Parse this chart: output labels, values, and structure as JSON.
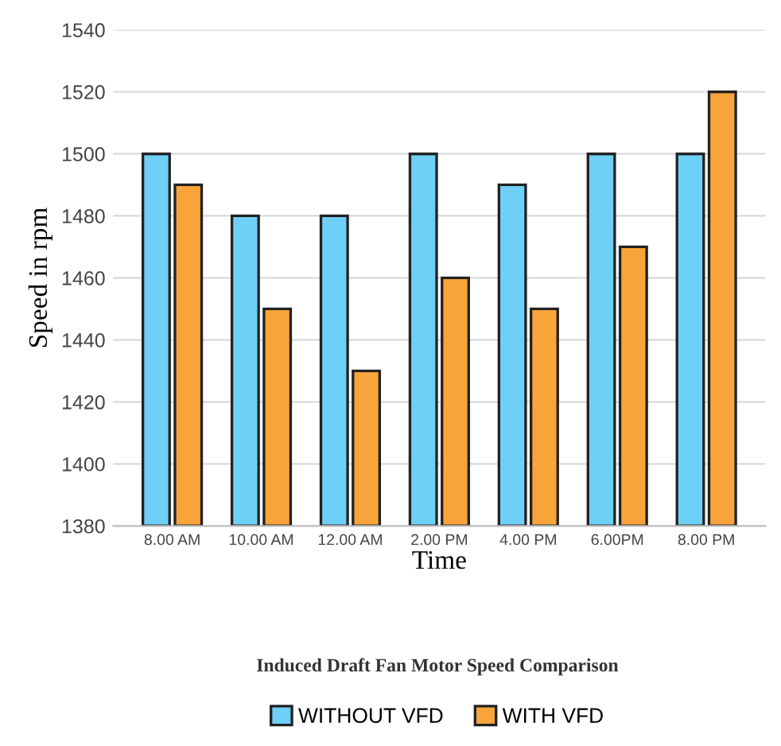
{
  "chart_data": {
    "type": "bar",
    "title": "Induced Draft Fan Motor Speed Comparison",
    "xlabel": "Time",
    "ylabel": "Speed in rpm",
    "categories": [
      "8.00 AM",
      "10.00 AM",
      "12.00 AM",
      "2.00 PM",
      "4.00 PM",
      "6.00PM",
      "8.00 PM"
    ],
    "series": [
      {
        "name": "WITHOUT VFD",
        "color": "#6fd0f7",
        "values": [
          1500,
          1480,
          1480,
          1500,
          1490,
          1500,
          1500
        ]
      },
      {
        "name": "WITH VFD",
        "color": "#f9a43a",
        "values": [
          1490,
          1450,
          1430,
          1460,
          1450,
          1470,
          1520
        ]
      }
    ],
    "ylim": [
      1380,
      1540
    ],
    "yticks": [
      1380,
      1400,
      1420,
      1440,
      1460,
      1480,
      1500,
      1520,
      1540
    ],
    "grid": "y",
    "legend": "bottom"
  }
}
